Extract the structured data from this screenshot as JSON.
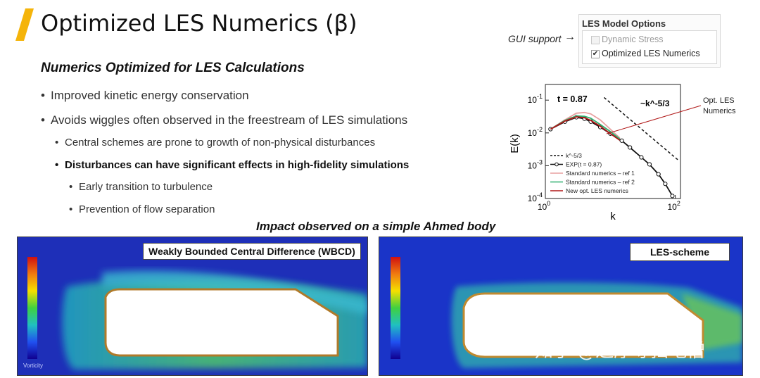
{
  "slide": {
    "title": "Optimized LES Numerics (β)",
    "accent_color": "#f5b40a",
    "subtitle": "Numerics Optimized for LES Calculations",
    "bullets": [
      "Improved kinetic energy conservation",
      "Avoids wiggles often observed in the freestream of LES simulations"
    ],
    "sub_bullets": [
      "Central schemes are prone to growth of non-physical disturbances",
      "Disturbances can have significant effects in high-fidelity simulations"
    ],
    "sub_sub_bullets": [
      "Early transition to turbulence",
      "Prevention of flow separation"
    ],
    "impact_caption": "Impact observed on a simple Ahmed body"
  },
  "gui": {
    "label": "GUI support",
    "arrow": "→",
    "panel_title": "LES Model Options",
    "options": [
      {
        "label": "Dynamic Stress",
        "checked": false,
        "enabled": false
      },
      {
        "label": "Optimized LES Numerics",
        "checked": true,
        "enabled": true
      }
    ]
  },
  "chart_data": {
    "type": "line",
    "x_scale": "log",
    "y_scale": "log",
    "xlabel": "k",
    "ylabel": "E(k)",
    "xlim": [
      1,
      120
    ],
    "ylim": [
      0.0001,
      0.3
    ],
    "x_ticks": [
      "10^0",
      "10^2"
    ],
    "y_ticks": [
      "10^-1",
      "10^-2",
      "10^-3",
      "10^-4"
    ],
    "annotation_time": "t = 0.87",
    "annotation_slope": "~k^-5/3",
    "callout": "Opt. LES Numerics",
    "series": [
      {
        "name": "k^-5/3",
        "style": "dashed",
        "color": "#111111",
        "points": [
          [
            8,
            0.12
          ],
          [
            110,
            0.0015
          ]
        ]
      },
      {
        "name": "EXP(t = 0.87)",
        "style": "line-circles",
        "color": "#111111",
        "points": [
          [
            1.2,
            0.013
          ],
          [
            2,
            0.022
          ],
          [
            3,
            0.03
          ],
          [
            4,
            0.027
          ],
          [
            5,
            0.022
          ],
          [
            7,
            0.015
          ],
          [
            10,
            0.0095
          ],
          [
            15,
            0.0058
          ],
          [
            20,
            0.0036
          ],
          [
            30,
            0.0018
          ],
          [
            40,
            0.0011
          ],
          [
            55,
            0.00055
          ],
          [
            70,
            0.00028
          ],
          [
            90,
            0.00012
          ]
        ]
      },
      {
        "name": "Standard numerics – ref 1",
        "style": "solid",
        "color": "#e8a0a0",
        "points": [
          [
            1.2,
            0.013
          ],
          [
            2,
            0.025
          ],
          [
            3,
            0.04
          ],
          [
            4,
            0.042
          ],
          [
            5,
            0.038
          ],
          [
            7,
            0.025
          ],
          [
            10,
            0.013
          ],
          [
            14,
            0.007
          ]
        ]
      },
      {
        "name": "Standard numerics – ref 2",
        "style": "solid",
        "color": "#30b070",
        "points": [
          [
            1.2,
            0.013
          ],
          [
            2,
            0.024
          ],
          [
            3,
            0.033
          ],
          [
            4,
            0.032
          ],
          [
            5,
            0.028
          ],
          [
            7,
            0.018
          ],
          [
            10,
            0.011
          ],
          [
            14,
            0.0065
          ]
        ]
      },
      {
        "name": "New opt. LES numerics",
        "style": "solid",
        "color": "#b01818",
        "points": [
          [
            1.2,
            0.013
          ],
          [
            2,
            0.023
          ],
          [
            3,
            0.031
          ],
          [
            4,
            0.029
          ],
          [
            5,
            0.024
          ],
          [
            7,
            0.016
          ],
          [
            10,
            0.0095
          ],
          [
            14,
            0.006
          ]
        ]
      }
    ]
  },
  "panels": {
    "left_label": "Weakly Bounded Central Difference (WBCD)",
    "right_label": "LES-scheme",
    "colorbar_label": "Vorticity"
  },
  "watermark": "知乎 @达摩寺扫地僧"
}
